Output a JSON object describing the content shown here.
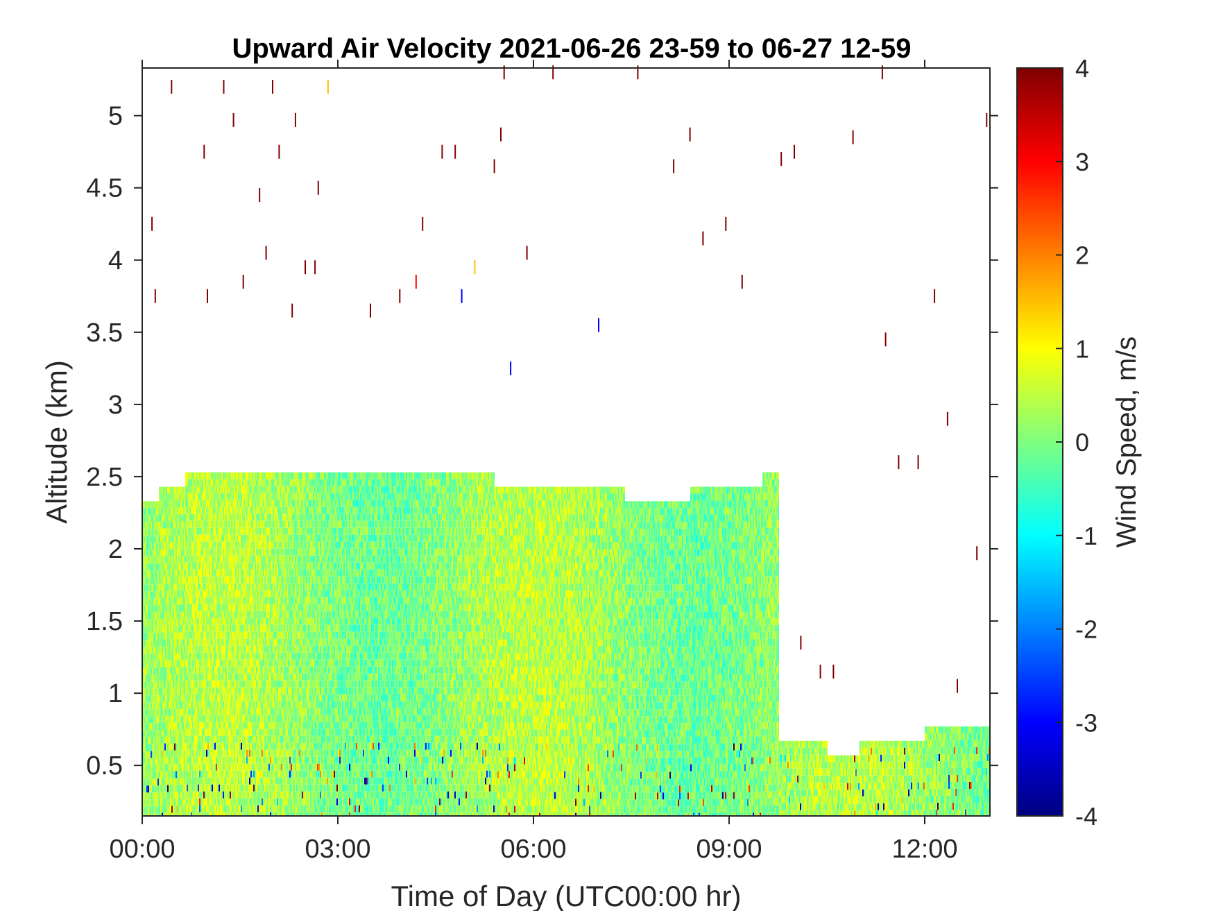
{
  "chart_data": {
    "type": "heatmap",
    "title": "Upward Air Velocity 2021-06-26 23-59 to 06-27 12-59",
    "xlabel": "Time of Day (UTC00:00 hr)",
    "ylabel": "Altitude (km)",
    "colorbar_label": "Wind Speed, m/s",
    "x_unit": "hours",
    "xlim": [
      0,
      13
    ],
    "ylim": [
      0.15,
      5.33
    ],
    "clim": [
      -4,
      4
    ],
    "colormap": "jet",
    "grid": false,
    "x_ticks": [
      {
        "value": 0,
        "label": "00:00"
      },
      {
        "value": 3,
        "label": "03:00"
      },
      {
        "value": 6,
        "label": "06:00"
      },
      {
        "value": 9,
        "label": "09:00"
      },
      {
        "value": 12,
        "label": "12:00"
      }
    ],
    "y_ticks": [
      {
        "value": 0.5,
        "label": "0.5"
      },
      {
        "value": 1,
        "label": "1"
      },
      {
        "value": 1.5,
        "label": "1.5"
      },
      {
        "value": 2,
        "label": "2"
      },
      {
        "value": 2.5,
        "label": "2.5"
      },
      {
        "value": 3,
        "label": "3"
      },
      {
        "value": 3.5,
        "label": "3.5"
      },
      {
        "value": 4,
        "label": "4"
      },
      {
        "value": 4.5,
        "label": "4.5"
      },
      {
        "value": 5,
        "label": "5"
      }
    ],
    "colorbar_ticks": [
      {
        "value": 4,
        "label": "4"
      },
      {
        "value": 3,
        "label": "3"
      },
      {
        "value": 2,
        "label": "2"
      },
      {
        "value": 1,
        "label": "1"
      },
      {
        "value": 0,
        "label": "0"
      },
      {
        "value": -1,
        "label": "-1"
      },
      {
        "value": -2,
        "label": "-2"
      },
      {
        "value": -3,
        "label": "-3"
      },
      {
        "value": -4,
        "label": "-4"
      }
    ],
    "data_top_envelope_km": [
      {
        "x": 0.0,
        "y": 2.33
      },
      {
        "x": 0.25,
        "y": 2.43
      },
      {
        "x": 0.65,
        "y": 2.53
      },
      {
        "x": 2.0,
        "y": 2.53
      },
      {
        "x": 5.4,
        "y": 2.43
      },
      {
        "x": 7.4,
        "y": 2.33
      },
      {
        "x": 8.4,
        "y": 2.43
      },
      {
        "x": 9.5,
        "y": 2.53
      },
      {
        "x": 9.75,
        "y": 0.67
      },
      {
        "x": 10.5,
        "y": 0.57
      },
      {
        "x": 11.0,
        "y": 0.67
      },
      {
        "x": 12.0,
        "y": 0.77
      },
      {
        "x": 13.0,
        "y": 0.77
      }
    ],
    "dominant_value_range": [
      -1.2,
      1.0
    ],
    "scattered_points_km": [
      {
        "x": 0.15,
        "y": 4.25,
        "v": 4
      },
      {
        "x": 0.2,
        "y": 3.75,
        "v": 4
      },
      {
        "x": 0.45,
        "y": 5.2,
        "v": 4
      },
      {
        "x": 0.95,
        "y": 4.75,
        "v": 4
      },
      {
        "x": 1.0,
        "y": 3.75,
        "v": 4
      },
      {
        "x": 1.25,
        "y": 5.2,
        "v": 4
      },
      {
        "x": 1.4,
        "y": 4.97,
        "v": 4
      },
      {
        "x": 1.55,
        "y": 3.85,
        "v": 4
      },
      {
        "x": 1.8,
        "y": 4.45,
        "v": 4
      },
      {
        "x": 1.9,
        "y": 4.05,
        "v": 4
      },
      {
        "x": 2.0,
        "y": 5.2,
        "v": 4
      },
      {
        "x": 2.1,
        "y": 4.75,
        "v": 4
      },
      {
        "x": 2.3,
        "y": 3.65,
        "v": 4
      },
      {
        "x": 2.35,
        "y": 4.97,
        "v": 4
      },
      {
        "x": 2.5,
        "y": 3.95,
        "v": 4
      },
      {
        "x": 2.65,
        "y": 3.95,
        "v": 4
      },
      {
        "x": 2.7,
        "y": 4.5,
        "v": 4
      },
      {
        "x": 2.85,
        "y": 5.2,
        "v": 1.5
      },
      {
        "x": 3.5,
        "y": 3.65,
        "v": 4
      },
      {
        "x": 3.95,
        "y": 3.75,
        "v": 4
      },
      {
        "x": 4.2,
        "y": 3.85,
        "v": 3
      },
      {
        "x": 4.3,
        "y": 4.25,
        "v": 4
      },
      {
        "x": 4.6,
        "y": 4.75,
        "v": 4
      },
      {
        "x": 4.8,
        "y": 4.75,
        "v": 4
      },
      {
        "x": 4.9,
        "y": 3.75,
        "v": -3
      },
      {
        "x": 5.1,
        "y": 3.95,
        "v": 1.5
      },
      {
        "x": 5.4,
        "y": 4.65,
        "v": 4
      },
      {
        "x": 5.5,
        "y": 4.87,
        "v": 4
      },
      {
        "x": 5.55,
        "y": 5.3,
        "v": 4
      },
      {
        "x": 5.65,
        "y": 3.25,
        "v": -3
      },
      {
        "x": 5.9,
        "y": 4.05,
        "v": 4
      },
      {
        "x": 6.3,
        "y": 5.3,
        "v": 4
      },
      {
        "x": 7.0,
        "y": 3.55,
        "v": -3
      },
      {
        "x": 7.6,
        "y": 5.3,
        "v": 4
      },
      {
        "x": 8.15,
        "y": 4.65,
        "v": 4
      },
      {
        "x": 8.4,
        "y": 4.87,
        "v": 4
      },
      {
        "x": 8.6,
        "y": 4.15,
        "v": 4
      },
      {
        "x": 8.95,
        "y": 4.25,
        "v": 4
      },
      {
        "x": 9.2,
        "y": 3.85,
        "v": 4
      },
      {
        "x": 9.8,
        "y": 4.7,
        "v": 4
      },
      {
        "x": 10.0,
        "y": 4.75,
        "v": 4
      },
      {
        "x": 10.9,
        "y": 4.85,
        "v": 4
      },
      {
        "x": 11.35,
        "y": 5.3,
        "v": 4
      },
      {
        "x": 11.4,
        "y": 3.45,
        "v": 4
      },
      {
        "x": 12.15,
        "y": 3.75,
        "v": 4
      },
      {
        "x": 12.35,
        "y": 2.9,
        "v": 4
      },
      {
        "x": 12.8,
        "y": 1.97,
        "v": 4
      },
      {
        "x": 12.95,
        "y": 4.97,
        "v": 4
      },
      {
        "x": 10.1,
        "y": 1.35,
        "v": 4
      },
      {
        "x": 10.4,
        "y": 1.15,
        "v": 4
      },
      {
        "x": 10.6,
        "y": 1.15,
        "v": 4
      },
      {
        "x": 12.5,
        "y": 1.05,
        "v": 4
      },
      {
        "x": 11.6,
        "y": 2.6,
        "v": 4
      },
      {
        "x": 11.9,
        "y": 2.6,
        "v": 4
      }
    ]
  }
}
